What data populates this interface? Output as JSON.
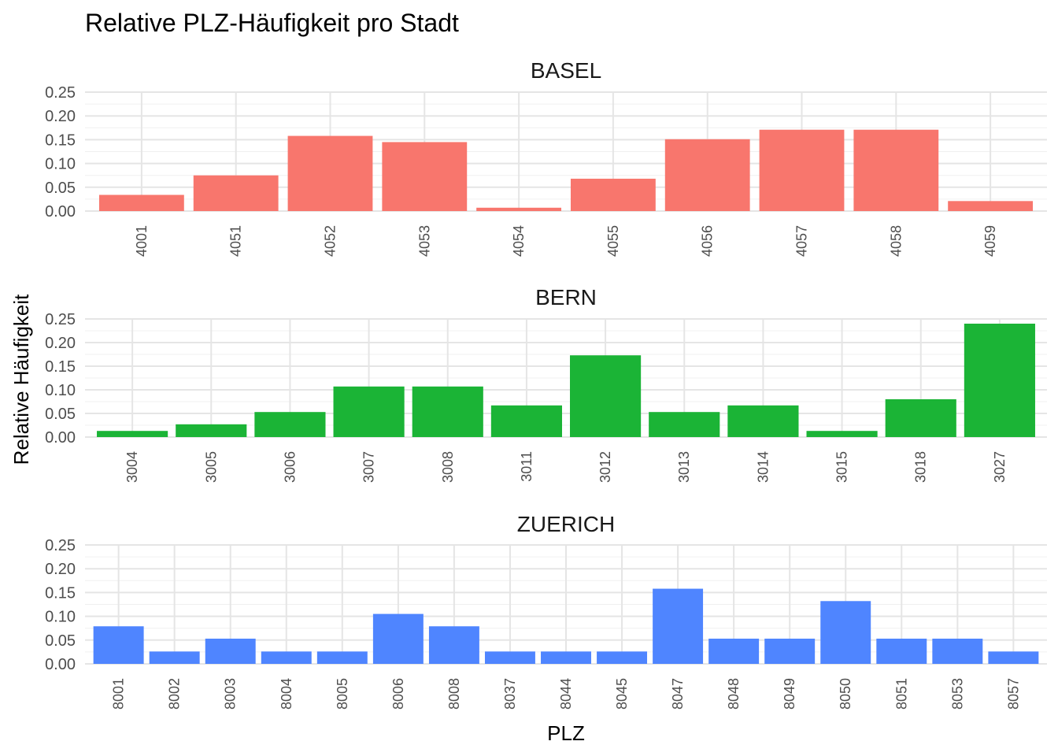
{
  "chart_data": {
    "type": "bar",
    "title": "Relative PLZ-Häufigkeit pro Stadt",
    "xlabel": "PLZ",
    "ylabel": "Relative Häufigkeit",
    "ylim": [
      0,
      0.25
    ],
    "yticks": [
      "0.00",
      "0.05",
      "0.10",
      "0.15",
      "0.20",
      "0.25"
    ],
    "grid": true,
    "legend": "none",
    "panels": [
      {
        "name": "BASEL",
        "color": "#F8766D",
        "categories": [
          "4001",
          "4051",
          "4052",
          "4053",
          "4054",
          "4055",
          "4056",
          "4057",
          "4058",
          "4059"
        ],
        "values": [
          0.034,
          0.075,
          0.158,
          0.145,
          0.007,
          0.068,
          0.151,
          0.171,
          0.171,
          0.021
        ]
      },
      {
        "name": "BERN",
        "color": "#1BB436",
        "categories": [
          "3004",
          "3005",
          "3006",
          "3007",
          "3008",
          "3011",
          "3012",
          "3013",
          "3014",
          "3015",
          "3018",
          "3027"
        ],
        "values": [
          0.013,
          0.027,
          0.053,
          0.107,
          0.107,
          0.067,
          0.173,
          0.053,
          0.067,
          0.013,
          0.08,
          0.24
        ]
      },
      {
        "name": "ZUERICH",
        "color": "#4F85FF",
        "categories": [
          "8001",
          "8002",
          "8003",
          "8004",
          "8005",
          "8006",
          "8008",
          "8037",
          "8044",
          "8045",
          "8047",
          "8048",
          "8049",
          "8050",
          "8051",
          "8053",
          "8057"
        ],
        "values": [
          0.079,
          0.026,
          0.053,
          0.026,
          0.026,
          0.105,
          0.079,
          0.026,
          0.026,
          0.026,
          0.158,
          0.053,
          0.053,
          0.132,
          0.053,
          0.053,
          0.026
        ]
      }
    ]
  }
}
